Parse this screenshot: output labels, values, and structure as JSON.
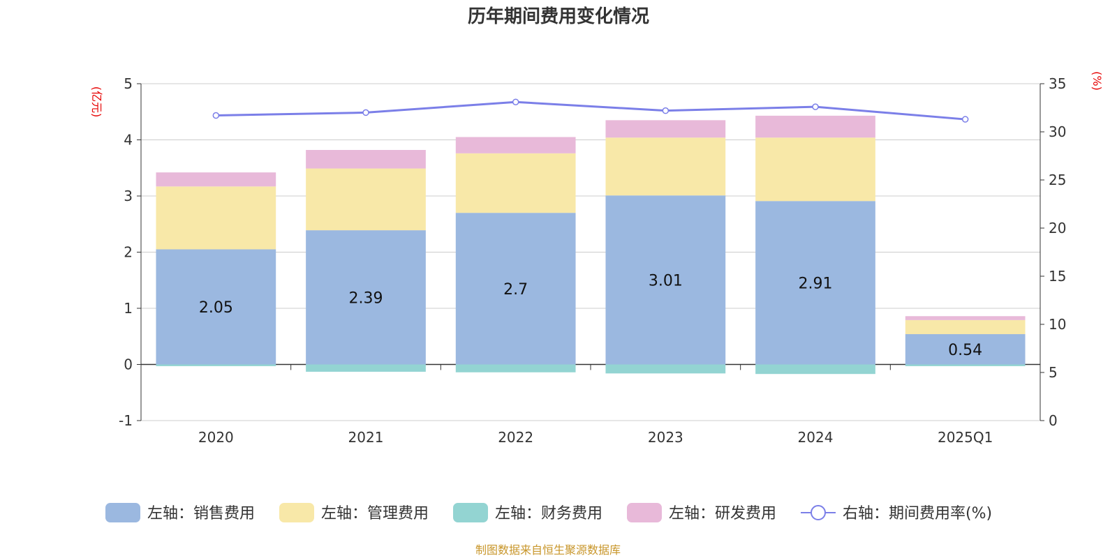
{
  "chart_data": {
    "type": "bar",
    "title": "历年期间费用变化情况",
    "categories": [
      "2020",
      "2021",
      "2022",
      "2023",
      "2024",
      "2025Q1"
    ],
    "y_left": {
      "unit": "(亿元)",
      "ylim": [
        -1,
        5
      ],
      "ticks": [
        "-1",
        "0",
        "1",
        "2",
        "3",
        "4",
        "5"
      ]
    },
    "y_right": {
      "unit": "(%)",
      "ylim": [
        0,
        35
      ],
      "ticks": [
        "0",
        "5",
        "10",
        "15",
        "20",
        "25",
        "30",
        "35"
      ]
    },
    "grid": true,
    "stacked": true,
    "series": [
      {
        "name": "左轴：销售费用",
        "axis": "left",
        "kind": "bar",
        "color": "#9bb8e0",
        "values": [
          2.05,
          2.39,
          2.7,
          3.01,
          2.91,
          0.54
        ],
        "data_labels": [
          "2.05",
          "2.39",
          "2.7",
          "3.01",
          "2.91",
          "0.54"
        ]
      },
      {
        "name": "左轴：管理费用",
        "axis": "left",
        "kind": "bar",
        "color": "#f8e8a8",
        "values": [
          1.12,
          1.1,
          1.06,
          1.03,
          1.13,
          0.25
        ]
      },
      {
        "name": "左轴：财务费用",
        "axis": "left",
        "kind": "bar",
        "color": "#93d4d2",
        "values": [
          -0.03,
          -0.13,
          -0.14,
          -0.16,
          -0.17,
          -0.03
        ]
      },
      {
        "name": "左轴：研发费用",
        "axis": "left",
        "kind": "bar",
        "color": "#e8b9d9",
        "values": [
          0.25,
          0.33,
          0.29,
          0.31,
          0.39,
          0.07
        ]
      },
      {
        "name": "右轴：期间费用率(%)",
        "axis": "right",
        "kind": "line",
        "color": "#7b7fe8",
        "values": [
          31.7,
          32.0,
          33.1,
          32.2,
          32.6,
          31.3
        ]
      }
    ]
  },
  "footer": {
    "source": "制图数据来自恒生聚源数据库"
  }
}
